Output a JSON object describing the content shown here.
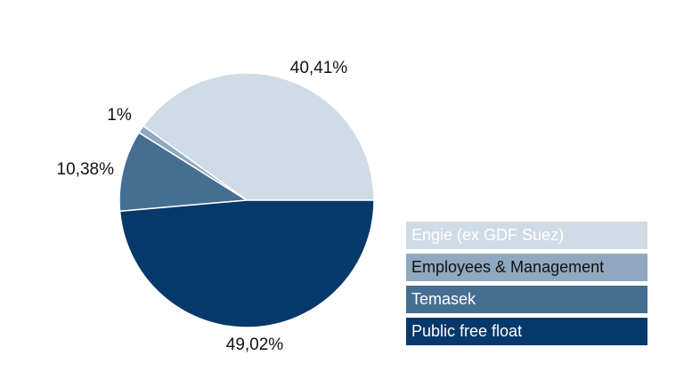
{
  "chart_data": {
    "type": "pie",
    "slices": [
      {
        "label": "Engie (ex GDF Suez)",
        "value": 40.41,
        "value_label": "40,41%",
        "color": "#cfdbe5",
        "text_color": "#ffffff"
      },
      {
        "label": "Employees & Management",
        "value": 1.0,
        "value_label": "1%",
        "color": "#8fa8c0",
        "text_color": "#111111"
      },
      {
        "label": "Temasek",
        "value": 10.38,
        "value_label": "10,38%",
        "color": "#456f92",
        "text_color": "#ffffff"
      },
      {
        "label": "Public free float",
        "value": 49.02,
        "value_label": "49,02%",
        "color": "#05386b",
        "text_color": "#ffffff"
      }
    ],
    "legend_position": "bottom-right",
    "start_angle_deg": 0,
    "direction": "counterclockwise"
  }
}
